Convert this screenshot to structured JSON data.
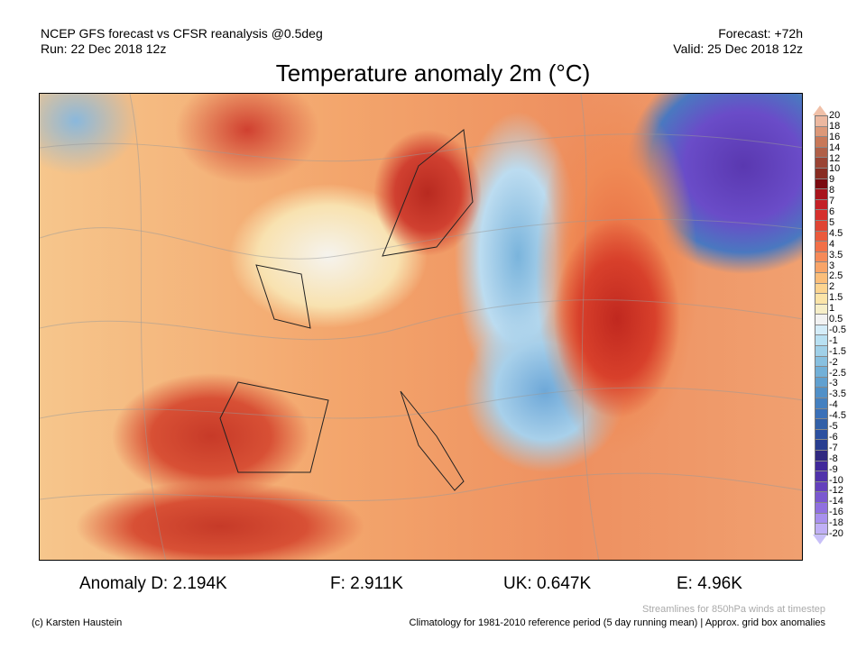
{
  "header": {
    "line1": "NCEP GFS forecast vs CFSR reanalysis @0.5deg",
    "line2": "Run: 22 Dec 2018 12z",
    "forecast": "Forecast: +72h",
    "valid": "Valid: 25 Dec 2018 12z"
  },
  "title": "Temperature anomaly 2m (°C)",
  "colorbar": {
    "labels": [
      "20",
      "18",
      "16",
      "14",
      "12",
      "10",
      "9",
      "8",
      "7",
      "6",
      "5",
      "4.5",
      "4",
      "3.5",
      "3",
      "2.5",
      "2",
      "1.5",
      "1",
      "0.5",
      "-0.5",
      "-1",
      "-1.5",
      "-2",
      "-2.5",
      "-3",
      "-3.5",
      "-4",
      "-4.5",
      "-5",
      "-6",
      "-7",
      "-8",
      "-9",
      "-10",
      "-12",
      "-14",
      "-16",
      "-18",
      "-20"
    ],
    "colors": [
      "#ecb8a0",
      "#dc9878",
      "#c87858",
      "#b06048",
      "#9a4434",
      "#882c22",
      "#7a0a10",
      "#a8141c",
      "#c42026",
      "#d6302c",
      "#e04433",
      "#ea5a3c",
      "#f27048",
      "#f68a58",
      "#f8a468",
      "#fbbe7a",
      "#fcd490",
      "#fbe4a8",
      "#f6eec8",
      "#f2f2f2",
      "#d4ecf8",
      "#b8e0f2",
      "#a0d0e8",
      "#88c0e0",
      "#72b0d8",
      "#60a0d0",
      "#5090c8",
      "#4480c0",
      "#3a70b8",
      "#3260a8",
      "#2c50a0",
      "#283e90",
      "#302880",
      "#40289a",
      "#5032aa",
      "#6440bc",
      "#7a58d0",
      "#9070e0",
      "#a890ee",
      "#c0b0f6"
    ]
  },
  "anomalies": {
    "d": "Anomaly D: 2.194K",
    "f": "F: 2.911K",
    "uk": "UK: 0.647K",
    "e": "E: 4.96K"
  },
  "footer": {
    "streamlines": "Streamlines for 850hPa winds at timestep",
    "climatology": "Climatology for 1981-2010 reference period (5 day running mean) | Approx. grid box anomalies",
    "copyright": "(c) Karsten Haustein"
  }
}
